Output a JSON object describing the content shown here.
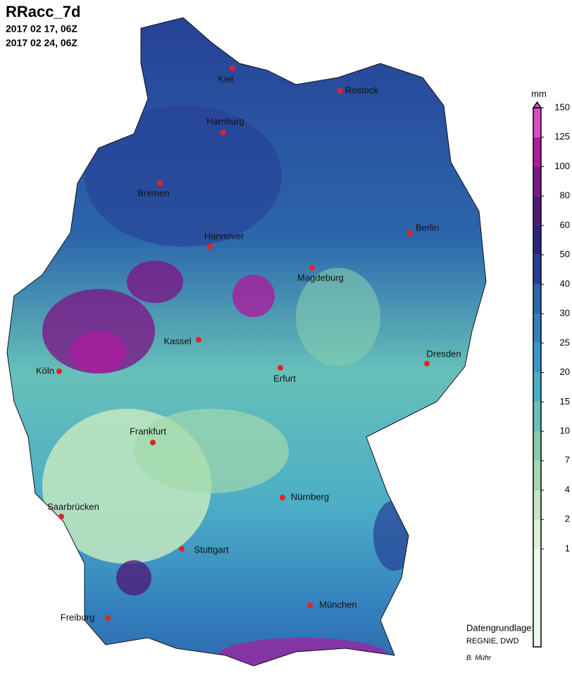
{
  "header": {
    "title": "RRacc_7d",
    "start": "2017 02 17, 06Z",
    "end": "2017 02 24, 06Z"
  },
  "cities": [
    "Kiel",
    "Rostock",
    "Hamburg",
    "Bremen",
    "Berlin",
    "Hannover",
    "Magdeburg",
    "Kassel",
    "Dresden",
    "Köln",
    "Erfurt",
    "Frankfurt",
    "Nürnberg",
    "Saarbrücken",
    "Stuttgart",
    "München",
    "Freiburg"
  ],
  "legend": {
    "unit": "mm",
    "ticks": [
      1,
      2,
      4,
      7,
      10,
      15,
      20,
      25,
      30,
      40,
      50,
      60,
      80,
      100,
      125,
      150
    ],
    "colors": [
      "#eefaee",
      "#dcf2d8",
      "#c3e7c0",
      "#a3d9ac",
      "#86cdb0",
      "#66c0b9",
      "#4cadc6",
      "#3c98ca",
      "#3380be",
      "#2c66ac",
      "#263f95",
      "#2c2380",
      "#4f1b7b",
      "#7c1987",
      "#aa1d9f",
      "#d84ec9"
    ]
  },
  "credits": {
    "source_label": "Datengrundlage:",
    "source": "REGNIE, DWD",
    "author": "B. Mühr"
  }
}
